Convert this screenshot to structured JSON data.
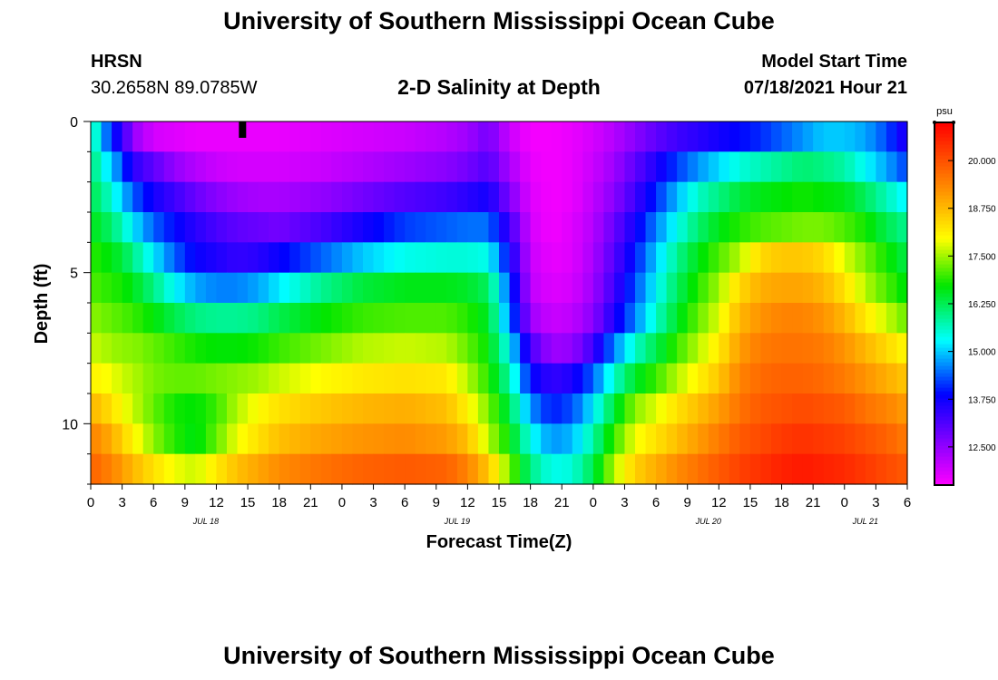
{
  "page": {
    "top_title": "University of Southern Mississippi Ocean Cube",
    "bottom_title": "University of Southern Mississippi Ocean Cube",
    "station": "HRSN",
    "coords": "30.2658N  89.0785W",
    "subtitle": "2-D Salinity at Depth",
    "model_start_label": "Model Start Time",
    "model_start_value": "07/18/2021 Hour 21"
  },
  "chart_data": {
    "type": "heatmap",
    "title": "2-D Salinity at Depth",
    "xlabel": "Forecast Time(Z)",
    "ylabel": "Depth (ft)",
    "x_hours": [
      0,
      3,
      6,
      9,
      12,
      15,
      18,
      21,
      24,
      27,
      30,
      33,
      36,
      39,
      42,
      45,
      48,
      51,
      54,
      57,
      60,
      63,
      66,
      69,
      72,
      75,
      78
    ],
    "xlim": [
      0,
      78
    ],
    "x_tick_labels": [
      "0",
      "3",
      "6",
      "9",
      "12",
      "15",
      "18",
      "21",
      "0",
      "3",
      "6",
      "9",
      "12",
      "15",
      "18",
      "21",
      "0",
      "3",
      "6",
      "9",
      "12",
      "15",
      "18",
      "21",
      "0",
      "3",
      "6"
    ],
    "date_labels": [
      {
        "text": "JUL 18",
        "hour": 11
      },
      {
        "text": "JUL 19",
        "hour": 35
      },
      {
        "text": "JUL 20",
        "hour": 59
      },
      {
        "text": "JUL 21",
        "hour": 74
      }
    ],
    "ylim": [
      0,
      12
    ],
    "y_tick_labels": [
      "0",
      "5",
      "10"
    ],
    "y_tick_values": [
      0,
      5,
      10
    ],
    "current_time_hour": 14.5,
    "colorbar": {
      "unit": "psu",
      "range": [
        11.5,
        21.0
      ],
      "tick_values": [
        12.5,
        13.75,
        15.0,
        16.25,
        17.5,
        18.75,
        20.0
      ],
      "tick_labels": [
        "12.500",
        "13.750",
        "15.000",
        "16.250",
        "17.500",
        "18.750",
        "20.000"
      ]
    },
    "row_depths_ft": [
      0.5,
      1.5,
      2.5,
      3.5,
      4.5,
      5.5,
      6.5,
      7.5,
      8.5,
      9.5,
      10.5,
      11.5
    ],
    "keyframes": {
      "hours": [
        0,
        1,
        2,
        3,
        4,
        6,
        8,
        10,
        12,
        14,
        16,
        18,
        22,
        26,
        30,
        34,
        36,
        38,
        40,
        42,
        44,
        46,
        48,
        50,
        52,
        54,
        56,
        58,
        60,
        62,
        64,
        66,
        68,
        70,
        72,
        74,
        76,
        78
      ],
      "rows": [
        [
          16.0,
          15.0,
          14.0,
          13.5,
          12.5,
          11.9,
          11.8,
          11.7,
          11.7,
          11.7,
          11.7,
          11.7,
          11.8,
          11.9,
          12.0,
          12.2,
          12.4,
          12.8,
          12.0,
          11.6,
          11.6,
          11.7,
          11.9,
          12.2,
          12.6,
          13.0,
          13.3,
          13.5,
          13.7,
          13.9,
          14.1,
          14.4,
          14.7,
          15.0,
          15.0,
          14.8,
          14.3,
          13.5
        ],
        [
          16.2,
          15.5,
          15.0,
          14.3,
          13.5,
          13.0,
          12.5,
          12.2,
          12.0,
          11.9,
          11.9,
          11.9,
          12.0,
          12.2,
          12.4,
          12.6,
          12.8,
          13.1,
          12.3,
          11.7,
          11.6,
          11.7,
          12.0,
          12.4,
          13.0,
          13.6,
          14.2,
          14.7,
          15.1,
          15.5,
          15.7,
          15.9,
          16.1,
          16.0,
          15.8,
          15.3,
          14.8,
          14.2
        ],
        [
          16.3,
          16.0,
          15.5,
          15.0,
          14.4,
          13.7,
          13.3,
          12.9,
          12.6,
          12.4,
          12.3,
          12.3,
          12.5,
          12.8,
          13.1,
          13.3,
          13.5,
          13.7,
          12.7,
          11.8,
          11.6,
          11.7,
          12.1,
          12.6,
          13.3,
          14.1,
          14.9,
          15.6,
          16.0,
          16.4,
          16.6,
          16.7,
          16.8,
          16.7,
          16.6,
          16.2,
          15.7,
          15.2
        ],
        [
          16.6,
          16.4,
          16.1,
          15.7,
          15.2,
          14.4,
          13.9,
          13.5,
          13.2,
          13.0,
          12.9,
          12.8,
          13.2,
          13.7,
          14.2,
          14.4,
          14.5,
          14.5,
          13.3,
          11.9,
          11.6,
          11.8,
          12.2,
          12.9,
          13.7,
          14.6,
          15.4,
          16.1,
          16.6,
          16.9,
          17.1,
          17.2,
          17.3,
          17.3,
          17.1,
          16.8,
          16.3,
          15.9
        ],
        [
          16.9,
          16.8,
          16.6,
          16.4,
          16.0,
          15.2,
          14.4,
          13.8,
          13.6,
          13.4,
          13.5,
          13.8,
          14.4,
          15.0,
          15.4,
          15.5,
          15.5,
          15.4,
          13.8,
          12.0,
          11.7,
          11.8,
          12.3,
          13.1,
          14.0,
          15.0,
          15.9,
          16.6,
          17.1,
          17.6,
          18.4,
          18.6,
          18.6,
          18.4,
          17.8,
          17.3,
          16.8,
          16.3
        ],
        [
          17.1,
          17.0,
          16.9,
          16.8,
          16.6,
          16.0,
          15.3,
          14.8,
          14.6,
          14.6,
          14.8,
          15.2,
          15.9,
          16.4,
          16.6,
          16.6,
          16.5,
          16.2,
          14.3,
          12.1,
          11.8,
          11.9,
          12.4,
          13.3,
          14.3,
          15.3,
          16.2,
          16.9,
          17.5,
          18.4,
          18.9,
          19.0,
          19.0,
          18.8,
          18.3,
          17.6,
          17.1,
          16.6
        ],
        [
          17.4,
          17.3,
          17.2,
          17.1,
          17.0,
          16.7,
          16.3,
          16.0,
          15.9,
          15.9,
          16.0,
          16.3,
          16.7,
          17.0,
          17.1,
          17.1,
          16.9,
          16.5,
          14.6,
          12.4,
          12.0,
          12.1,
          12.6,
          13.6,
          14.6,
          15.6,
          16.5,
          17.2,
          17.8,
          18.8,
          19.2,
          19.4,
          19.4,
          19.2,
          18.8,
          18.2,
          17.7,
          17.2
        ],
        [
          17.7,
          17.6,
          17.5,
          17.4,
          17.4,
          17.2,
          17.0,
          16.8,
          16.7,
          16.7,
          16.8,
          17.0,
          17.3,
          17.6,
          17.7,
          17.6,
          17.2,
          16.7,
          15.3,
          13.2,
          12.4,
          12.5,
          13.3,
          14.6,
          15.6,
          16.3,
          17.0,
          17.6,
          18.2,
          19.1,
          19.5,
          19.6,
          19.6,
          19.5,
          19.2,
          18.8,
          18.4,
          18.0
        ],
        [
          18.1,
          18.0,
          17.9,
          17.7,
          17.6,
          17.3,
          17.2,
          17.2,
          17.3,
          17.4,
          17.5,
          17.7,
          18.0,
          18.2,
          18.3,
          18.2,
          17.6,
          16.9,
          15.8,
          13.9,
          13.4,
          13.6,
          14.4,
          15.6,
          16.5,
          17.0,
          17.6,
          18.1,
          18.6,
          19.4,
          19.7,
          19.8,
          19.8,
          19.7,
          19.5,
          19.2,
          18.9,
          18.6
        ],
        [
          18.8,
          18.6,
          18.3,
          18.0,
          17.7,
          17.2,
          16.8,
          16.7,
          17.0,
          17.6,
          18.0,
          18.3,
          18.6,
          18.8,
          18.9,
          18.7,
          18.1,
          17.3,
          16.3,
          14.7,
          14.0,
          14.3,
          15.2,
          16.4,
          17.4,
          17.8,
          18.3,
          18.7,
          19.1,
          19.6,
          19.9,
          20.0,
          20.1,
          20.0,
          19.9,
          19.6,
          19.4,
          19.1
        ],
        [
          19.4,
          19.2,
          18.9,
          18.5,
          18.1,
          17.4,
          16.9,
          16.6,
          17.2,
          17.9,
          18.3,
          18.7,
          19.0,
          19.2,
          19.3,
          19.1,
          18.7,
          17.6,
          16.7,
          15.4,
          14.7,
          14.9,
          15.8,
          17.0,
          17.9,
          18.3,
          18.7,
          19.1,
          19.5,
          19.9,
          20.1,
          20.3,
          20.4,
          20.3,
          20.2,
          20.0,
          19.8,
          19.5
        ],
        [
          19.8,
          19.6,
          19.4,
          19.1,
          18.8,
          18.3,
          17.9,
          17.7,
          18.2,
          18.7,
          19.0,
          19.3,
          19.6,
          19.8,
          19.9,
          19.8,
          19.4,
          18.6,
          17.3,
          16.0,
          15.4,
          15.5,
          16.3,
          17.6,
          18.5,
          18.9,
          19.3,
          19.6,
          19.9,
          20.2,
          20.4,
          20.6,
          20.7,
          20.6,
          20.5,
          20.3,
          20.1,
          19.9
        ]
      ]
    }
  }
}
